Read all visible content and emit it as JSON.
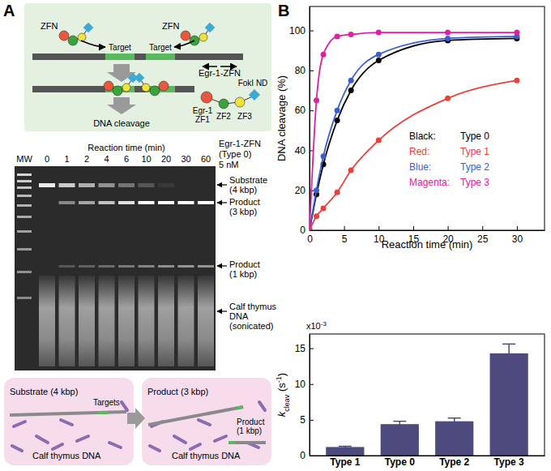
{
  "panel_a": {
    "label": "A",
    "schematic": {
      "zfn_left": "ZFN",
      "zfn_right": "ZFN",
      "target_left": "Target",
      "target_right": "Target",
      "cleavage": "DNA cleavage",
      "protein": "Egr-1-ZFN",
      "zf1": [
        "Egr-1",
        "ZF1"
      ],
      "zf2": "ZF2",
      "zf3": "ZF3",
      "nuclease": "FokI ND"
    },
    "gel": {
      "mw": "MW",
      "time_title": "Reaction time (min)",
      "lanes": [
        0,
        1,
        2,
        4,
        6,
        10,
        20,
        30,
        60
      ],
      "condition": [
        "Egr-1-ZFN",
        "(Type 0)",
        "5 nM"
      ],
      "bands": [
        [
          "Substrate",
          "(4 kbp)"
        ],
        [
          "Product",
          "(3 kbp)"
        ],
        [
          "Product",
          "(1 kbp)"
        ],
        [
          "Calf thymus",
          "DNA",
          "(sonicated)"
        ]
      ]
    },
    "reaction": {
      "before": {
        "substrate": "Substrate (4 kbp)",
        "targets": "Targets",
        "background": "Calf thymus DNA"
      },
      "after": {
        "product_long": "Product (3 kbp)",
        "product_short": [
          "Product",
          "(1 kbp)"
        ],
        "background": "Calf thymus DNA"
      }
    }
  },
  "panel_b": {
    "label": "B"
  },
  "chart_data": [
    {
      "type": "line",
      "marker": "circle",
      "xlabel": "Reaction time (min)",
      "ylabel": "DNA cleavage (%)",
      "x": [
        0,
        1,
        2,
        4,
        6,
        10,
        20,
        30
      ],
      "xlim": [
        0,
        34
      ],
      "xticks": [
        0,
        5,
        10,
        15,
        20,
        25,
        30
      ],
      "ylim": [
        0,
        112
      ],
      "yticks": [
        0,
        20,
        40,
        60,
        80,
        100
      ],
      "annotations": [
        "Black:",
        "Red:",
        "Blue:",
        "Magenta:"
      ],
      "series": [
        {
          "name": "Type 0",
          "color": "#000000",
          "values": [
            0,
            18,
            33,
            55,
            70,
            85,
            95,
            96
          ]
        },
        {
          "name": "Type 1",
          "color": "#e8403a",
          "values": [
            0,
            7,
            11,
            19,
            30,
            45,
            66,
            75
          ]
        },
        {
          "name": "Type 2",
          "color": "#3a5fcd",
          "values": [
            0,
            20,
            37,
            60,
            75,
            88,
            96,
            97
          ]
        },
        {
          "name": "Type 3",
          "color": "#e020a0",
          "values": [
            0,
            65,
            88,
            97,
            98,
            99,
            99,
            99
          ]
        }
      ]
    },
    {
      "type": "bar",
      "ylabel": [
        "k",
        "cleav",
        " (s",
        "-1",
        ")"
      ],
      "annotations": [
        "x10",
        "-3"
      ],
      "categories": [
        "Type 1",
        "Type 0",
        "Type 2",
        "Type 3"
      ],
      "values": [
        1.2,
        4.4,
        4.8,
        14.3
      ],
      "error": [
        0.1,
        0.4,
        0.45,
        1.3
      ],
      "ylim": [
        0,
        17
      ],
      "yticks": [
        0,
        5,
        10,
        15
      ],
      "color": "#4e4a7e"
    }
  ]
}
